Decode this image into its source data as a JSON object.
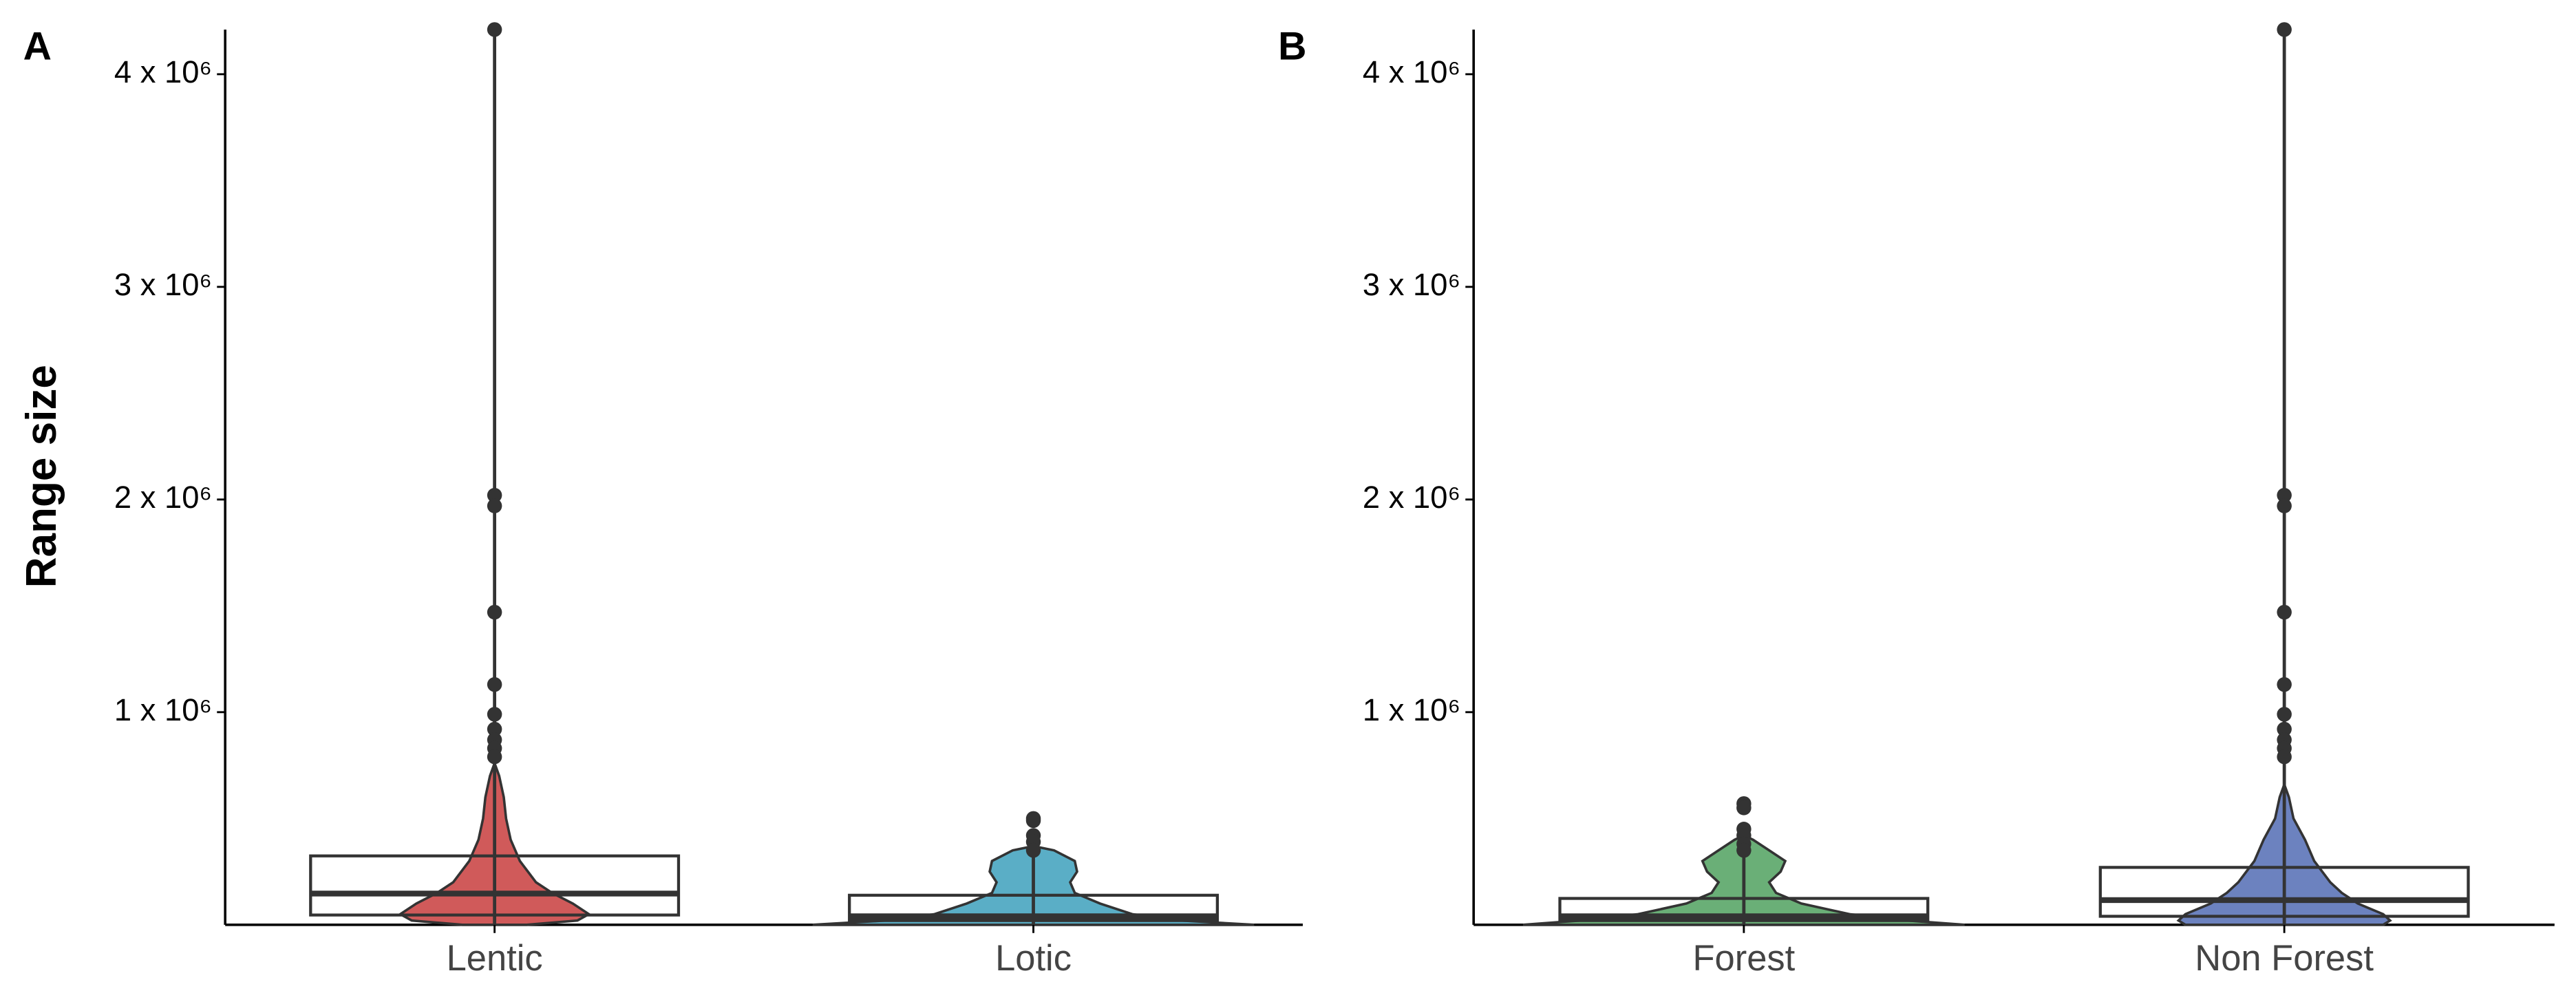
{
  "chart_data": [
    {
      "type": "violin",
      "panel_label": "A",
      "ylabel": "Range size",
      "ylim": [
        0,
        4210000
      ],
      "yticks": [
        {
          "value": 1000000,
          "label": "1 x 10⁶"
        },
        {
          "value": 2000000,
          "label": "2 x 10⁶"
        },
        {
          "value": 3000000,
          "label": "3 x 10⁶"
        },
        {
          "value": 4000000,
          "label": "4 x 10⁶"
        }
      ],
      "groups": [
        {
          "name": "Lentic",
          "color": "#d05a5a",
          "q1": 46000,
          "median": 147000,
          "q3": 324000,
          "whisker_low": 0,
          "whisker_high": 4210000,
          "outliers": [
            4210000,
            2020000,
            1970000,
            1470000,
            1130000,
            990000,
            920000,
            870000,
            830000,
            790000
          ],
          "violin_y": [
            0,
            20000,
            50000,
            100000,
            150000,
            200000,
            300000,
            400000,
            500000,
            600000,
            700000,
            760000
          ],
          "violin_density": [
            0.14,
            0.36,
            0.41,
            0.34,
            0.25,
            0.18,
            0.11,
            0.07,
            0.05,
            0.04,
            0.02,
            0
          ]
        },
        {
          "name": "Lotic",
          "color": "#5aaec6",
          "q1": 20000,
          "median": 40000,
          "q3": 139000,
          "whisker_low": 0,
          "whisker_high": 330000,
          "outliers": [
            500000,
            490000,
            420000,
            390000,
            350000
          ],
          "violin_y": [
            0,
            20000,
            50000,
            100000,
            150000,
            200000,
            250000,
            300000,
            350000,
            370000
          ],
          "violin_density": [
            0.96,
            0.64,
            0.43,
            0.29,
            0.18,
            0.16,
            0.19,
            0.18,
            0.09,
            0
          ]
        }
      ]
    },
    {
      "type": "violin",
      "panel_label": "B",
      "ylim": [
        0,
        4210000
      ],
      "yticks": [
        {
          "value": 1000000,
          "label": "1 x 10⁶"
        },
        {
          "value": 2000000,
          "label": "2 x 10⁶"
        },
        {
          "value": 3000000,
          "label": "3 x 10⁶"
        },
        {
          "value": 4000000,
          "label": "4 x 10⁶"
        }
      ],
      "groups": [
        {
          "name": "Forest",
          "color": "#6aaf77",
          "q1": 20000,
          "median": 40000,
          "q3": 124000,
          "whisker_low": 0,
          "whisker_high": 330000,
          "outliers": [
            570000,
            550000,
            450000,
            420000,
            380000,
            350000
          ],
          "violin_y": [
            0,
            20000,
            50000,
            100000,
            150000,
            200000,
            250000,
            300000,
            350000,
            400000,
            420000
          ],
          "violin_density": [
            0.96,
            0.71,
            0.46,
            0.25,
            0.14,
            0.11,
            0.16,
            0.18,
            0.11,
            0.04,
            0
          ]
        },
        {
          "name": "Non Forest",
          "color": "#6c82bf",
          "q1": 40000,
          "median": 116000,
          "q3": 270000,
          "whisker_low": 0,
          "whisker_high": 4210000,
          "outliers": [
            4210000,
            2020000,
            1970000,
            1470000,
            1130000,
            990000,
            920000,
            870000,
            830000,
            790000
          ],
          "violin_y": [
            0,
            20000,
            50000,
            100000,
            150000,
            200000,
            300000,
            400000,
            500000,
            600000,
            660000
          ],
          "violin_density": [
            0.43,
            0.46,
            0.43,
            0.32,
            0.25,
            0.2,
            0.13,
            0.09,
            0.04,
            0.02,
            0
          ]
        }
      ]
    }
  ]
}
